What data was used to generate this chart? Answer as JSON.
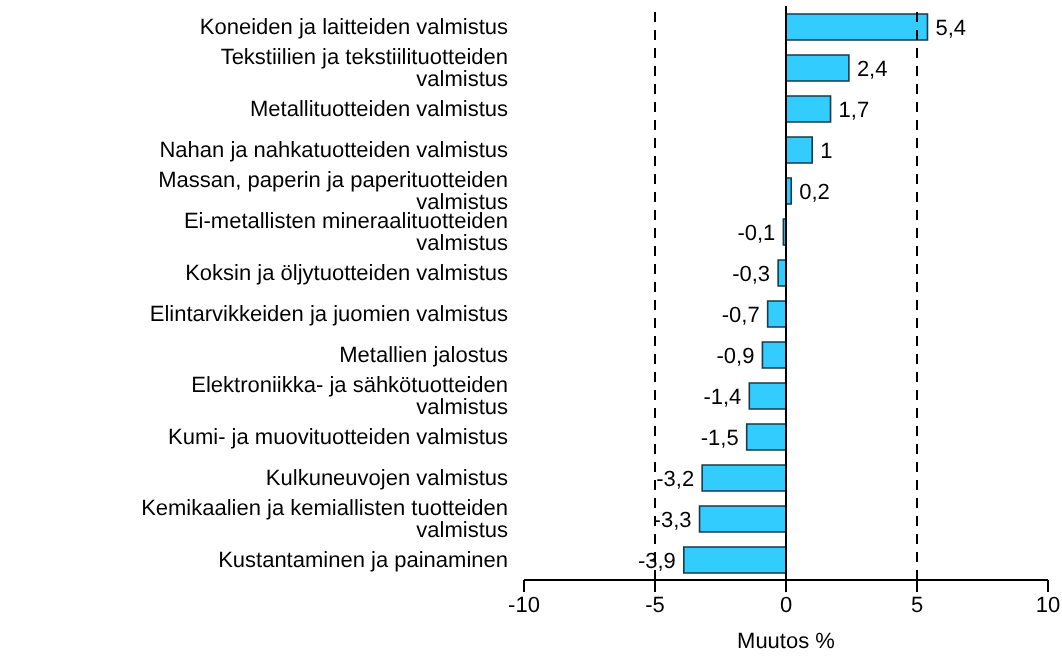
{
  "chart_data": {
    "type": "bar",
    "orientation": "horizontal",
    "xlabel": "Muutos %",
    "categories": [
      "Koneiden ja laitteiden valmistus",
      "Tekstiilien ja tekstiilituotteiden valmistus",
      "Metallituotteiden valmistus",
      "Nahan ja nahkatuotteiden valmistus",
      "Massan, paperin ja paperituotteiden valmistus",
      "Ei-metallisten mineraalituotteiden valmistus",
      "Koksin ja öljytuotteiden valmistus",
      "Elintarvikkeiden ja juomien valmistus",
      "Metallien jalostus",
      "Elektroniikka- ja sähkötuotteiden valmistus",
      "Kumi- ja muovituotteiden valmistus",
      "Kulkuneuvojen valmistus",
      "Kemikaalien ja kemiallisten tuotteiden valmistus",
      "Kustantaminen ja painaminen"
    ],
    "values": [
      5.4,
      2.4,
      1.7,
      1,
      0.2,
      -0.1,
      -0.3,
      -0.7,
      -0.9,
      -1.4,
      -1.5,
      -3.2,
      -3.3,
      -3.9
    ],
    "value_labels": [
      "5,4",
      "2,4",
      "1,7",
      "1",
      "0,2",
      "-0,1",
      "-0,3",
      "-0,7",
      "-0,9",
      "-1,4",
      "-1,5",
      "-3,2",
      "-3,3",
      "-3,9"
    ],
    "color": "#33ccff",
    "xlim": [
      -10,
      10
    ],
    "xticks": [
      -10,
      -5,
      0,
      5,
      10
    ],
    "ref_lines": [
      {
        "axis": "x",
        "value": -5,
        "line_style": "dashed",
        "color": "#000000"
      },
      {
        "axis": "x",
        "value": 5,
        "line_style": "dashed",
        "color": "#000000"
      }
    ],
    "legend": false
  }
}
